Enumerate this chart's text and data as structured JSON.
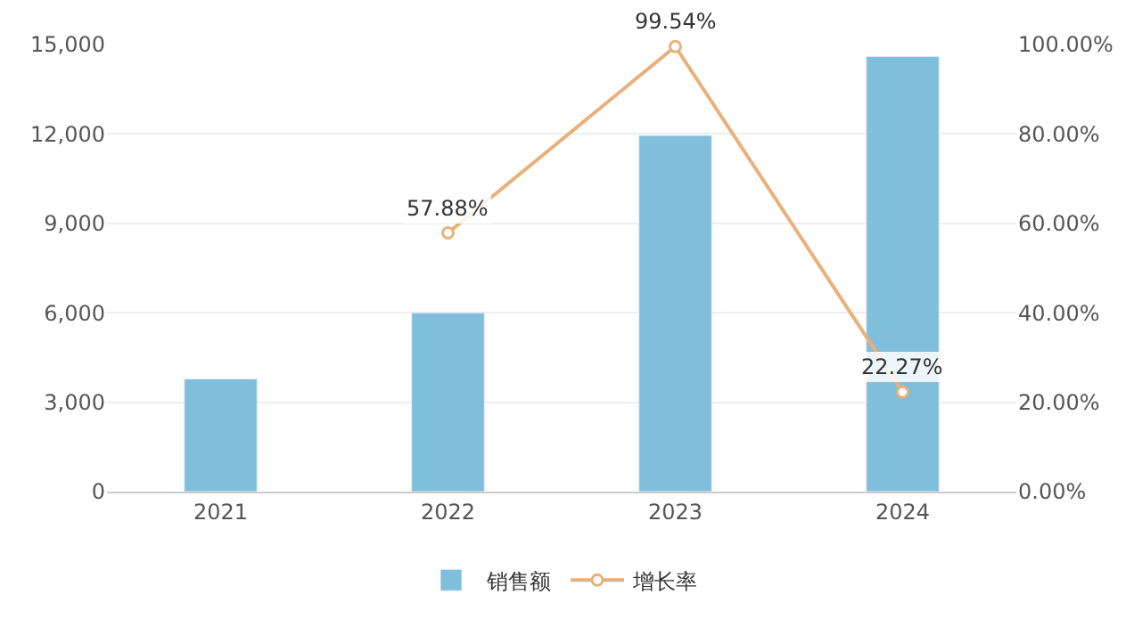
{
  "chart_data": {
    "type": "bar",
    "categories": [
      "2021",
      "2022",
      "2023",
      "2024"
    ],
    "series": [
      {
        "name": "销售额",
        "color": "#7fbfdc",
        "values": [
          3780,
          6000,
          11950,
          14600
        ]
      },
      {
        "name": "增长率",
        "type": "line",
        "axis": "y2",
        "color": "#e8b07a",
        "marker": "circle",
        "values": [
          null,
          57.88,
          99.54,
          22.27
        ],
        "value_labels": [
          null,
          "57.88%",
          "99.54%",
          "22.27%"
        ]
      }
    ],
    "ylim": [
      0,
      15000
    ],
    "yticks": [
      0,
      {
        "value": 3000,
        "label": "3,000"
      },
      {
        "value": 6000,
        "label": "6,000"
      },
      {
        "value": 9000,
        "label": "9,000"
      },
      {
        "value": 12000,
        "label": "12,000"
      },
      {
        "value": 15000,
        "label": "15,000"
      }
    ],
    "y2lim": [
      0,
      100
    ],
    "y2ticks": [
      {
        "value": 0,
        "label": "0.00%"
      },
      {
        "value": 20,
        "label": "20.00%"
      },
      {
        "value": 40,
        "label": "40.00%"
      },
      {
        "value": 60,
        "label": "60.00%"
      },
      {
        "value": 80,
        "label": "80.00%"
      },
      {
        "value": 100,
        "label": "100.00%"
      }
    ],
    "grid": "y",
    "legend": "bottom"
  }
}
